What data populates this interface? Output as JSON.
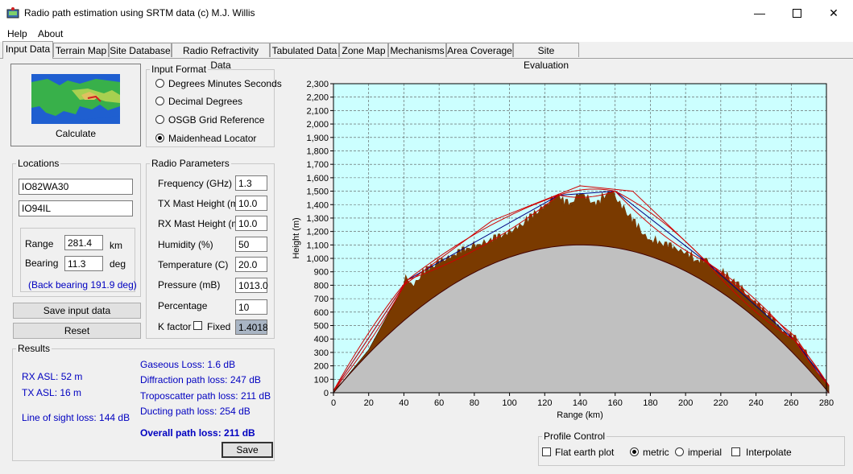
{
  "window": {
    "title": "Radio path estimation using SRTM data (c) M.J. Willis"
  },
  "menu": {
    "help": "Help",
    "about": "About"
  },
  "tabs": [
    "Input Data",
    "Terrain Map",
    "Site Database",
    "Radio Refractivity Data",
    "Tabulated Data",
    "Zone Map",
    "Mechanisms",
    "Area Coverage",
    "Site Evaluation"
  ],
  "calculate": {
    "label": "Calculate"
  },
  "input_format": {
    "title": "Input Format",
    "options": [
      "Degrees Minutes Seconds",
      "Decimal Degrees",
      "OSGB Grid Reference",
      "Maidenhead Locator"
    ],
    "selected": "Maidenhead Locator"
  },
  "locations": {
    "title": "Locations",
    "site1": "IO82WA30",
    "site2": "IO94IL",
    "range_label": "Range",
    "range_value": "281.4",
    "range_unit": "km",
    "bearing_label": "Bearing",
    "bearing_value": "11.3",
    "bearing_unit": "deg",
    "back_bearing": "(Back bearing 191.9 deg)"
  },
  "buttons": {
    "save_input": "Save input data",
    "reset": "Reset",
    "save": "Save"
  },
  "radio_params": {
    "title": "Radio Parameters",
    "frequency_label": "Frequency (GHz)",
    "frequency": "1.3",
    "tx_mast_label": "TX Mast Height (m)",
    "tx_mast": "10.0",
    "rx_mast_label": "RX Mast Height (m)",
    "rx_mast": "10.0",
    "humidity_label": "Humidity (%)",
    "humidity": "50",
    "temperature_label": "Temperature (C)",
    "temperature": "20.0",
    "pressure_label": "Pressure (mB)",
    "pressure": "1013.0",
    "percentage_label": "Percentage",
    "percentage": "10",
    "kfactor_label": "K factor",
    "fixed_label": "Fixed",
    "kfactor": "1.4018"
  },
  "results": {
    "title": "Results",
    "rx_asl": "RX ASL: 52 m",
    "tx_asl": "TX ASL: 16 m",
    "los_loss": "Line of sight loss: 144 dB",
    "gaseous": "Gaseous Loss: 1.6 dB",
    "diffraction": "Diffraction path loss: 247 dB",
    "troposcatter": "Troposcatter path loss: 211 dB",
    "ducting": "Ducting path loss: 254 dB",
    "overall": "Overall path loss: 211 dB"
  },
  "profile_control": {
    "title": "Profile Control",
    "flat_earth": "Flat earth plot",
    "metric": "metric",
    "imperial": "imperial",
    "interpolate": "Interpolate",
    "units_selected": "metric"
  },
  "colors": {
    "plot_bg": "#ccffff",
    "terrain": "#7a3a00",
    "earth": "#c0c0c0",
    "fresnel": "#d00000",
    "los": "#000080"
  },
  "chart_data": {
    "type": "area",
    "xlabel": "Range (km)",
    "ylabel": "Height (m)",
    "xlim": [
      0,
      280
    ],
    "ylim": [
      0,
      2300
    ],
    "xticks": [
      "0",
      "20",
      "40",
      "60",
      "80",
      "100",
      "120",
      "140",
      "160",
      "180",
      "200",
      "220",
      "240",
      "260",
      "280"
    ],
    "yticks": [
      "0",
      "100",
      "200",
      "300",
      "400",
      "500",
      "600",
      "700",
      "800",
      "900",
      "1,000",
      "1,100",
      "1,200",
      "1,300",
      "1,400",
      "1,500",
      "1,600",
      "1,700",
      "1,800",
      "1,900",
      "2,000",
      "2,100",
      "2,200",
      "2,300"
    ],
    "grid": true,
    "earth_bulge_max": 1100,
    "terrain": {
      "x": [
        0,
        5,
        10,
        20,
        30,
        40,
        42,
        45,
        50,
        60,
        70,
        80,
        90,
        100,
        110,
        115,
        120,
        125,
        128,
        130,
        135,
        140,
        145,
        150,
        155,
        158,
        160,
        163,
        165,
        170,
        175,
        180,
        185,
        190,
        200,
        205,
        210,
        213,
        215,
        220,
        230,
        240,
        250,
        255,
        260,
        262,
        265,
        270,
        275,
        280,
        281.4
      ],
      "y": [
        15,
        80,
        160,
        320,
        560,
        800,
        840,
        780,
        860,
        960,
        1020,
        1080,
        1120,
        1180,
        1260,
        1320,
        1380,
        1430,
        1470,
        1400,
        1390,
        1480,
        1420,
        1380,
        1460,
        1500,
        1440,
        1380,
        1350,
        1260,
        1180,
        1120,
        1100,
        1080,
        1030,
        970,
        960,
        970,
        920,
        880,
        780,
        650,
        520,
        450,
        400,
        390,
        330,
        250,
        150,
        80,
        52
      ]
    }
  }
}
